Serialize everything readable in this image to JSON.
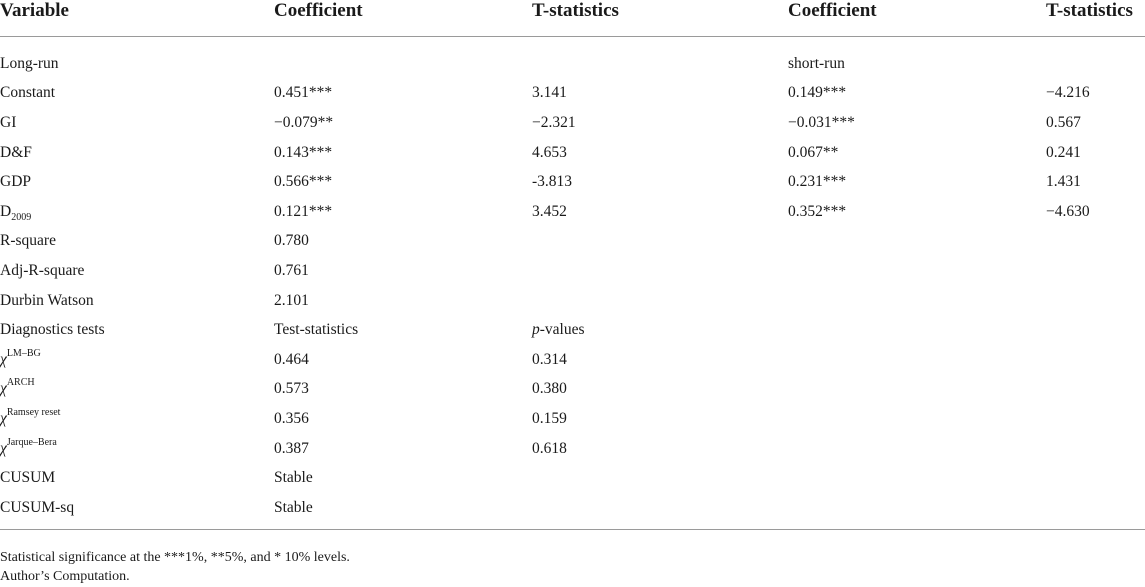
{
  "table": {
    "headers": [
      "Variable",
      "Coefficient",
      "T-statistics",
      "Coefficient",
      "T-statistics"
    ],
    "rows": [
      [
        "Long-run",
        "",
        "",
        "short-run",
        ""
      ],
      [
        "Constant",
        "0.451***",
        "3.141",
        "0.149***",
        "−4.216"
      ],
      [
        "GI",
        "−0.079**",
        "−2.321",
        "−0.031***",
        "0.567"
      ],
      [
        "D&F",
        "0.143***",
        "4.653",
        "0.067**",
        "0.241"
      ],
      [
        "GDP",
        "0.566***",
        "-3.813",
        "0.231***",
        "1.431"
      ],
      [
        "D",
        "0.121***",
        "3.452",
        "0.352***",
        "−4.630"
      ],
      [
        "R-square",
        "0.780",
        "",
        "",
        ""
      ],
      [
        "Adj-R-square",
        "0.761",
        "",
        "",
        ""
      ],
      [
        "Durbin Watson",
        "2.101",
        "",
        "",
        ""
      ],
      [
        "Diagnostics tests",
        "Test-statistics",
        "p-values",
        "",
        ""
      ],
      [
        "χ",
        "0.464",
        "0.314",
        "",
        ""
      ],
      [
        "χ",
        "0.573",
        "0.380",
        "",
        ""
      ],
      [
        "χ",
        "0.356",
        "0.159",
        "",
        ""
      ],
      [
        "χ",
        "0.387",
        "0.618",
        "",
        ""
      ],
      [
        "CUSUM",
        "Stable",
        "",
        "",
        ""
      ],
      [
        "CUSUM-sq",
        "Stable",
        "",
        "",
        ""
      ]
    ],
    "d_subscript": "2009",
    "chi_superscripts": [
      "LM–BG",
      "ARCH",
      "Ramsey reset",
      "Jarque–Bera"
    ],
    "pvalues_italic": "p",
    "pvalues_rest": "-values"
  },
  "notes": {
    "significance": "Statistical significance at the ***1%, **5%, and * 10% levels.",
    "source": "Author’s Computation."
  }
}
